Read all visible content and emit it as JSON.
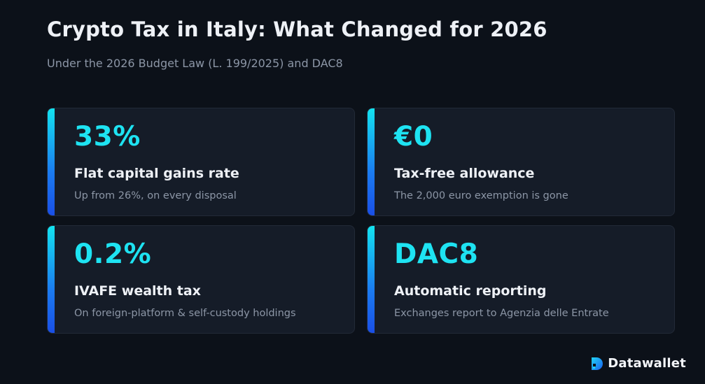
{
  "header": {
    "title": "Crypto Tax in Italy: What Changed for 2026",
    "subtitle": "Under the 2026 Budget Law (L. 199/2025) and DAC8"
  },
  "cards": [
    {
      "value": "33%",
      "label": "Flat capital gains rate",
      "description": "Up from 26%, on every disposal"
    },
    {
      "value": "€0",
      "label": "Tax-free allowance",
      "description": "The 2,000 euro exemption is gone"
    },
    {
      "value": "0.2%",
      "label": "IVAFE wealth tax",
      "description": "On foreign-platform & self-custody holdings"
    },
    {
      "value": "DAC8",
      "label": "Automatic reporting",
      "description": "Exchanges report to Agenzia delle Entrate"
    }
  ],
  "brand": {
    "name": "Datawallet",
    "icon": "datawallet-logo-icon"
  },
  "colors": {
    "background": "#0c1119",
    "card": "#151c28",
    "accent_value": "#1ee3f2",
    "accent_bar_top": "#13e3f0",
    "accent_bar_bottom": "#1a4fe6"
  }
}
